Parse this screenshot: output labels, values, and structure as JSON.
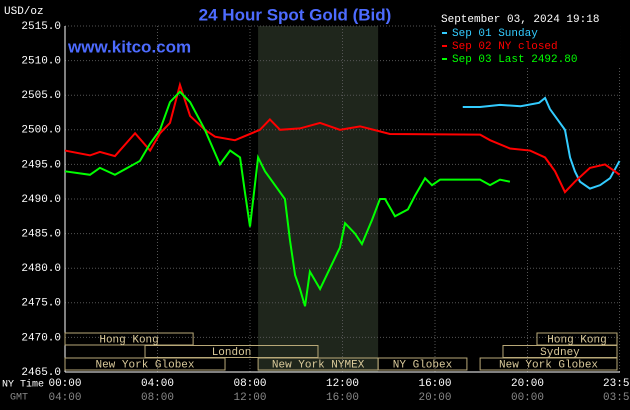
{
  "chart_data": {
    "type": "line",
    "title": "24 Hour Spot Gold (Bid)",
    "site": "www.kitco.com",
    "unit_label": "USD/oz",
    "timestamp": "September 03, 2024 19:18",
    "x_label": "NY Time",
    "x2_label": "GMT",
    "xlim": [
      0,
      24
    ],
    "ylim": [
      2465,
      2515
    ],
    "xticks": [
      {
        "value": 0,
        "label": "00:00"
      },
      {
        "value": 4,
        "label": "04:00"
      },
      {
        "value": 8,
        "label": "08:00"
      },
      {
        "value": 12,
        "label": "12:00"
      },
      {
        "value": 16,
        "label": "16:00"
      },
      {
        "value": 20,
        "label": "20:00"
      },
      {
        "value": 23.98,
        "label": "23:59"
      }
    ],
    "x2ticks": [
      {
        "value": 0,
        "label": "04:00"
      },
      {
        "value": 4,
        "label": "08:00"
      },
      {
        "value": 8,
        "label": "12:00"
      },
      {
        "value": 12,
        "label": "16:00"
      },
      {
        "value": 16,
        "label": "20:00"
      },
      {
        "value": 20,
        "label": "00:00"
      },
      {
        "value": 23.98,
        "label": "03:59"
      }
    ],
    "yticks": [
      {
        "value": 2465,
        "label": "2465.0"
      },
      {
        "value": 2470,
        "label": "2470.0"
      },
      {
        "value": 2475,
        "label": "2475.0"
      },
      {
        "value": 2480,
        "label": "2480.0"
      },
      {
        "value": 2485,
        "label": "2485.0"
      },
      {
        "value": 2490,
        "label": "2490.0"
      },
      {
        "value": 2495,
        "label": "2495.0"
      },
      {
        "value": 2500,
        "label": "2500.0"
      },
      {
        "value": 2505,
        "label": "2505.0"
      },
      {
        "value": 2510,
        "label": "2510.0"
      },
      {
        "value": 2515,
        "label": "2515.0"
      }
    ],
    "grid": true,
    "shaded_range": [
      8.35,
      13.54
    ],
    "series": [
      {
        "name": "Sep 01 Sunday",
        "color": "#33ccff",
        "x": [
          17.2,
          17.95,
          18.81,
          19.7,
          20.5,
          20.76,
          20.97,
          21.62,
          21.84,
          22.05,
          22.27,
          22.7,
          23.14,
          23.57,
          23.98
        ],
        "values": [
          2503.3,
          2503.3,
          2503.6,
          2503.4,
          2503.9,
          2504.6,
          2503,
          2500,
          2496,
          2494,
          2492.5,
          2491.5,
          2492,
          2493,
          2495.5
        ]
      },
      {
        "name": "Sep 02 NY closed",
        "color": "#ff0000",
        "x": [
          0,
          1.08,
          1.51,
          2.16,
          3.03,
          3.68,
          4.11,
          4.54,
          4.97,
          5.41,
          6.05,
          6.49,
          7.35,
          8.43,
          8.86,
          9.3,
          10.16,
          11.03,
          11.89,
          12.76,
          14.05,
          17.95,
          18.38,
          19.24,
          20.11,
          20.76,
          21.19,
          21.62,
          22.05,
          22.7,
          23.35,
          23.78,
          23.98
        ],
        "values": [
          2497,
          2496.3,
          2496.8,
          2496.2,
          2499.5,
          2497,
          2499.5,
          2501,
          2506.5,
          2502,
          2500,
          2499,
          2498.5,
          2500,
          2501.5,
          2500,
          2500.2,
          2501,
          2500,
          2500.5,
          2499.4,
          2499.3,
          2498.5,
          2497.3,
          2497,
          2496,
          2494,
          2491,
          2492.5,
          2494.5,
          2495,
          2494,
          2493.5
        ]
      },
      {
        "name": "Sep 03 Last 2492.80",
        "color": "#00ff00",
        "x": [
          0,
          1.08,
          1.51,
          2.16,
          3.24,
          3.68,
          4.11,
          4.54,
          4.97,
          5.41,
          6.05,
          6.7,
          7.14,
          7.57,
          7.78,
          8.0,
          8.35,
          8.65,
          9.08,
          9.51,
          9.73,
          9.95,
          10.16,
          10.38,
          10.59,
          11.03,
          11.46,
          11.89,
          12.11,
          12.54,
          12.84,
          13.28,
          13.62,
          13.84,
          14.27,
          14.83,
          15.14,
          15.57,
          15.87,
          16.22,
          17.95,
          18.38,
          18.81,
          19.24
        ],
        "values": [
          2494,
          2493.5,
          2494.5,
          2493.5,
          2495.5,
          2498,
          2500,
          2504,
          2505.5,
          2504,
          2500,
          2495,
          2497,
          2496,
          2491,
          2486,
          2496,
          2494,
          2492,
          2490,
          2484,
          2479,
          2477,
          2474.5,
          2479.5,
          2477,
          2480,
          2483,
          2486.5,
          2485,
          2483.5,
          2487,
          2490,
          2490,
          2487.5,
          2488.5,
          2490.5,
          2493,
          2492,
          2492.8,
          2492.8,
          2492,
          2492.8,
          2492.5
        ]
      }
    ],
    "sessions": [
      [
        {
          "label": "Hong Kong",
          "start": 0,
          "end": 5.54
        },
        {
          "label": "Hong Kong",
          "start": 20.41,
          "end": 23.87
        }
      ],
      [
        {
          "label": "London",
          "start": 3.46,
          "end": 10.94
        },
        {
          "label": "Sydney",
          "start": 18.94,
          "end": 23.87
        }
      ],
      [
        {
          "label": "New York Globex",
          "start": 0,
          "end": 6.92
        },
        {
          "label": "New York NYMEX",
          "start": 8.35,
          "end": 13.54
        },
        {
          "label": "NY Globex",
          "start": 13.54,
          "end": 17.38
        },
        {
          "label": "New York Globex",
          "start": 17.95,
          "end": 23.87
        }
      ]
    ]
  }
}
